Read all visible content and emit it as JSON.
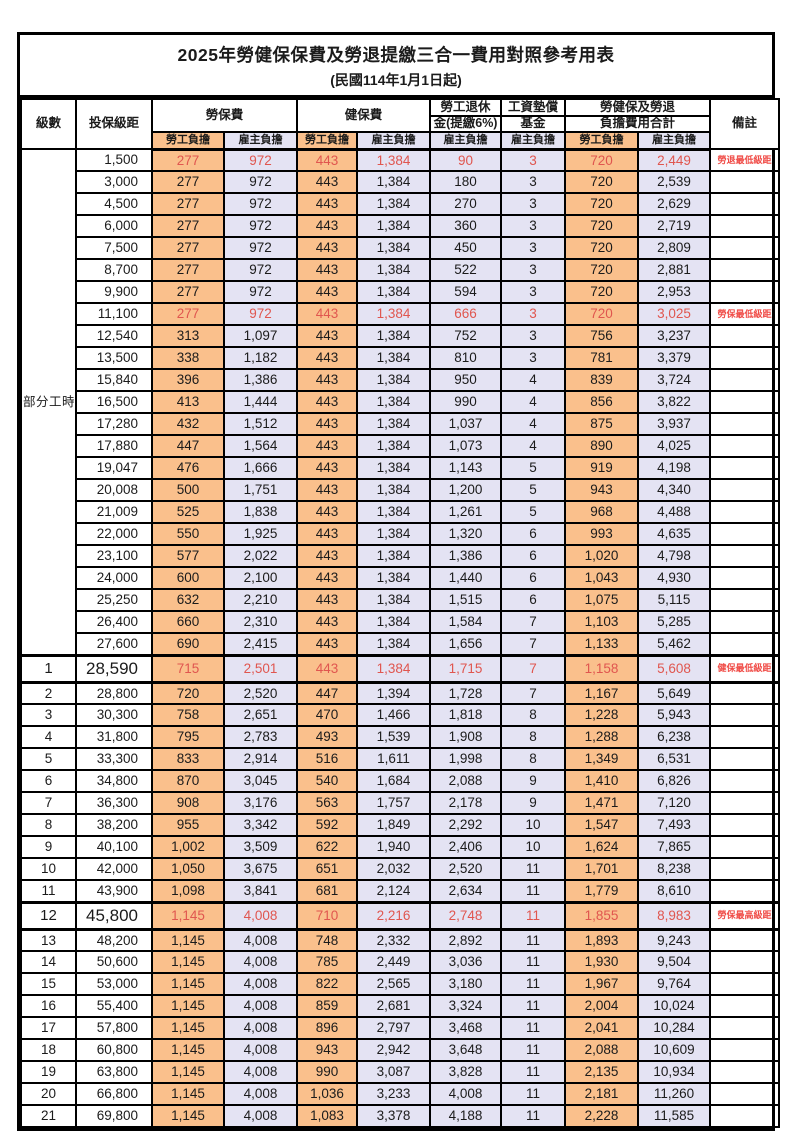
{
  "title": "2025年勞健保保費及勞退提繳三合一費用對照參考用表",
  "subtitle": "(民國114年1月1日起)",
  "header": {
    "level": "級數",
    "bracket": "投保級距",
    "labor_insurance": "勞保費",
    "health_insurance": "健保費",
    "pension_line1": "勞工退休",
    "pension_line2": "金(提繳6%)",
    "wage_fund_line1": "工資墊償",
    "wage_fund_line2": "基金",
    "total_line1": "勞健保及勞退",
    "total_line2": "負擔費用合計",
    "note": "備註",
    "employee": "勞工負擔",
    "employer": "雇主負擔"
  },
  "part_time_label": "部分工時",
  "part_time_rowspan": 23,
  "colors": {
    "employee_bg": "#fac08c",
    "employer_bg": "#e4e3f3",
    "highlight_red": "#e0564f",
    "note_red": "#f04b46",
    "grid": "#000000"
  },
  "rows": [
    {
      "level": null,
      "bracket": "1,500",
      "v": [
        "277",
        "972",
        "443",
        "1,384",
        "90",
        "3",
        "720",
        "2,449"
      ],
      "note": "勞退最低級距",
      "red": true,
      "big": false
    },
    {
      "level": null,
      "bracket": "3,000",
      "v": [
        "277",
        "972",
        "443",
        "1,384",
        "180",
        "3",
        "720",
        "2,539"
      ],
      "note": "",
      "red": false,
      "big": false
    },
    {
      "level": null,
      "bracket": "4,500",
      "v": [
        "277",
        "972",
        "443",
        "1,384",
        "270",
        "3",
        "720",
        "2,629"
      ],
      "note": "",
      "red": false,
      "big": false
    },
    {
      "level": null,
      "bracket": "6,000",
      "v": [
        "277",
        "972",
        "443",
        "1,384",
        "360",
        "3",
        "720",
        "2,719"
      ],
      "note": "",
      "red": false,
      "big": false
    },
    {
      "level": null,
      "bracket": "7,500",
      "v": [
        "277",
        "972",
        "443",
        "1,384",
        "450",
        "3",
        "720",
        "2,809"
      ],
      "note": "",
      "red": false,
      "big": false
    },
    {
      "level": null,
      "bracket": "8,700",
      "v": [
        "277",
        "972",
        "443",
        "1,384",
        "522",
        "3",
        "720",
        "2,881"
      ],
      "note": "",
      "red": false,
      "big": false
    },
    {
      "level": null,
      "bracket": "9,900",
      "v": [
        "277",
        "972",
        "443",
        "1,384",
        "594",
        "3",
        "720",
        "2,953"
      ],
      "note": "",
      "red": false,
      "big": false
    },
    {
      "level": null,
      "bracket": "11,100",
      "v": [
        "277",
        "972",
        "443",
        "1,384",
        "666",
        "3",
        "720",
        "3,025"
      ],
      "note": "勞保最低級距",
      "red": true,
      "big": false
    },
    {
      "level": null,
      "bracket": "12,540",
      "v": [
        "313",
        "1,097",
        "443",
        "1,384",
        "752",
        "3",
        "756",
        "3,237"
      ],
      "note": "",
      "red": false,
      "big": false
    },
    {
      "level": null,
      "bracket": "13,500",
      "v": [
        "338",
        "1,182",
        "443",
        "1,384",
        "810",
        "3",
        "781",
        "3,379"
      ],
      "note": "",
      "red": false,
      "big": false
    },
    {
      "level": null,
      "bracket": "15,840",
      "v": [
        "396",
        "1,386",
        "443",
        "1,384",
        "950",
        "4",
        "839",
        "3,724"
      ],
      "note": "",
      "red": false,
      "big": false
    },
    {
      "level": null,
      "bracket": "16,500",
      "v": [
        "413",
        "1,444",
        "443",
        "1,384",
        "990",
        "4",
        "856",
        "3,822"
      ],
      "note": "",
      "red": false,
      "big": false
    },
    {
      "level": null,
      "bracket": "17,280",
      "v": [
        "432",
        "1,512",
        "443",
        "1,384",
        "1,037",
        "4",
        "875",
        "3,937"
      ],
      "note": "",
      "red": false,
      "big": false
    },
    {
      "level": null,
      "bracket": "17,880",
      "v": [
        "447",
        "1,564",
        "443",
        "1,384",
        "1,073",
        "4",
        "890",
        "4,025"
      ],
      "note": "",
      "red": false,
      "big": false
    },
    {
      "level": null,
      "bracket": "19,047",
      "v": [
        "476",
        "1,666",
        "443",
        "1,384",
        "1,143",
        "5",
        "919",
        "4,198"
      ],
      "note": "",
      "red": false,
      "big": false
    },
    {
      "level": null,
      "bracket": "20,008",
      "v": [
        "500",
        "1,751",
        "443",
        "1,384",
        "1,200",
        "5",
        "943",
        "4,340"
      ],
      "note": "",
      "red": false,
      "big": false
    },
    {
      "level": null,
      "bracket": "21,009",
      "v": [
        "525",
        "1,838",
        "443",
        "1,384",
        "1,261",
        "5",
        "968",
        "4,488"
      ],
      "note": "",
      "red": false,
      "big": false
    },
    {
      "level": null,
      "bracket": "22,000",
      "v": [
        "550",
        "1,925",
        "443",
        "1,384",
        "1,320",
        "6",
        "993",
        "4,635"
      ],
      "note": "",
      "red": false,
      "big": false
    },
    {
      "level": null,
      "bracket": "23,100",
      "v": [
        "577",
        "2,022",
        "443",
        "1,384",
        "1,386",
        "6",
        "1,020",
        "4,798"
      ],
      "note": "",
      "red": false,
      "big": false
    },
    {
      "level": null,
      "bracket": "24,000",
      "v": [
        "600",
        "2,100",
        "443",
        "1,384",
        "1,440",
        "6",
        "1,043",
        "4,930"
      ],
      "note": "",
      "red": false,
      "big": false
    },
    {
      "level": null,
      "bracket": "25,250",
      "v": [
        "632",
        "2,210",
        "443",
        "1,384",
        "1,515",
        "6",
        "1,075",
        "5,115"
      ],
      "note": "",
      "red": false,
      "big": false
    },
    {
      "level": null,
      "bracket": "26,400",
      "v": [
        "660",
        "2,310",
        "443",
        "1,384",
        "1,584",
        "7",
        "1,103",
        "5,285"
      ],
      "note": "",
      "red": false,
      "big": false
    },
    {
      "level": null,
      "bracket": "27,600",
      "v": [
        "690",
        "2,415",
        "443",
        "1,384",
        "1,656",
        "7",
        "1,133",
        "5,462"
      ],
      "note": "",
      "red": false,
      "big": false
    },
    {
      "level": "1",
      "bracket": "28,590",
      "v": [
        "715",
        "2,501",
        "443",
        "1,384",
        "1,715",
        "7",
        "1,158",
        "5,608"
      ],
      "note": "健保最低級距",
      "red": true,
      "big": true
    },
    {
      "level": "2",
      "bracket": "28,800",
      "v": [
        "720",
        "2,520",
        "447",
        "1,394",
        "1,728",
        "7",
        "1,167",
        "5,649"
      ],
      "note": "",
      "red": false,
      "big": false
    },
    {
      "level": "3",
      "bracket": "30,300",
      "v": [
        "758",
        "2,651",
        "470",
        "1,466",
        "1,818",
        "8",
        "1,228",
        "5,943"
      ],
      "note": "",
      "red": false,
      "big": false
    },
    {
      "level": "4",
      "bracket": "31,800",
      "v": [
        "795",
        "2,783",
        "493",
        "1,539",
        "1,908",
        "8",
        "1,288",
        "6,238"
      ],
      "note": "",
      "red": false,
      "big": false
    },
    {
      "level": "5",
      "bracket": "33,300",
      "v": [
        "833",
        "2,914",
        "516",
        "1,611",
        "1,998",
        "8",
        "1,349",
        "6,531"
      ],
      "note": "",
      "red": false,
      "big": false
    },
    {
      "level": "6",
      "bracket": "34,800",
      "v": [
        "870",
        "3,045",
        "540",
        "1,684",
        "2,088",
        "9",
        "1,410",
        "6,826"
      ],
      "note": "",
      "red": false,
      "big": false
    },
    {
      "level": "7",
      "bracket": "36,300",
      "v": [
        "908",
        "3,176",
        "563",
        "1,757",
        "2,178",
        "9",
        "1,471",
        "7,120"
      ],
      "note": "",
      "red": false,
      "big": false
    },
    {
      "level": "8",
      "bracket": "38,200",
      "v": [
        "955",
        "3,342",
        "592",
        "1,849",
        "2,292",
        "10",
        "1,547",
        "7,493"
      ],
      "note": "",
      "red": false,
      "big": false
    },
    {
      "level": "9",
      "bracket": "40,100",
      "v": [
        "1,002",
        "3,509",
        "622",
        "1,940",
        "2,406",
        "10",
        "1,624",
        "7,865"
      ],
      "note": "",
      "red": false,
      "big": false
    },
    {
      "level": "10",
      "bracket": "42,000",
      "v": [
        "1,050",
        "3,675",
        "651",
        "2,032",
        "2,520",
        "11",
        "1,701",
        "8,238"
      ],
      "note": "",
      "red": false,
      "big": false
    },
    {
      "level": "11",
      "bracket": "43,900",
      "v": [
        "1,098",
        "3,841",
        "681",
        "2,124",
        "2,634",
        "11",
        "1,779",
        "8,610"
      ],
      "note": "",
      "red": false,
      "big": false
    },
    {
      "level": "12",
      "bracket": "45,800",
      "v": [
        "1,145",
        "4,008",
        "710",
        "2,216",
        "2,748",
        "11",
        "1,855",
        "8,983"
      ],
      "note": "勞保最高級距",
      "red": true,
      "big": true
    },
    {
      "level": "13",
      "bracket": "48,200",
      "v": [
        "1,145",
        "4,008",
        "748",
        "2,332",
        "2,892",
        "11",
        "1,893",
        "9,243"
      ],
      "note": "",
      "red": false,
      "big": false
    },
    {
      "level": "14",
      "bracket": "50,600",
      "v": [
        "1,145",
        "4,008",
        "785",
        "2,449",
        "3,036",
        "11",
        "1,930",
        "9,504"
      ],
      "note": "",
      "red": false,
      "big": false
    },
    {
      "level": "15",
      "bracket": "53,000",
      "v": [
        "1,145",
        "4,008",
        "822",
        "2,565",
        "3,180",
        "11",
        "1,967",
        "9,764"
      ],
      "note": "",
      "red": false,
      "big": false
    },
    {
      "level": "16",
      "bracket": "55,400",
      "v": [
        "1,145",
        "4,008",
        "859",
        "2,681",
        "3,324",
        "11",
        "2,004",
        "10,024"
      ],
      "note": "",
      "red": false,
      "big": false
    },
    {
      "level": "17",
      "bracket": "57,800",
      "v": [
        "1,145",
        "4,008",
        "896",
        "2,797",
        "3,468",
        "11",
        "2,041",
        "10,284"
      ],
      "note": "",
      "red": false,
      "big": false
    },
    {
      "level": "18",
      "bracket": "60,800",
      "v": [
        "1,145",
        "4,008",
        "943",
        "2,942",
        "3,648",
        "11",
        "2,088",
        "10,609"
      ],
      "note": "",
      "red": false,
      "big": false
    },
    {
      "level": "19",
      "bracket": "63,800",
      "v": [
        "1,145",
        "4,008",
        "990",
        "3,087",
        "3,828",
        "11",
        "2,135",
        "10,934"
      ],
      "note": "",
      "red": false,
      "big": false
    },
    {
      "level": "20",
      "bracket": "66,800",
      "v": [
        "1,145",
        "4,008",
        "1,036",
        "3,233",
        "4,008",
        "11",
        "2,181",
        "11,260"
      ],
      "note": "",
      "red": false,
      "big": false
    },
    {
      "level": "21",
      "bracket": "69,800",
      "v": [
        "1,145",
        "4,008",
        "1,083",
        "3,378",
        "4,188",
        "11",
        "2,228",
        "11,585"
      ],
      "note": "",
      "red": false,
      "big": false
    }
  ]
}
